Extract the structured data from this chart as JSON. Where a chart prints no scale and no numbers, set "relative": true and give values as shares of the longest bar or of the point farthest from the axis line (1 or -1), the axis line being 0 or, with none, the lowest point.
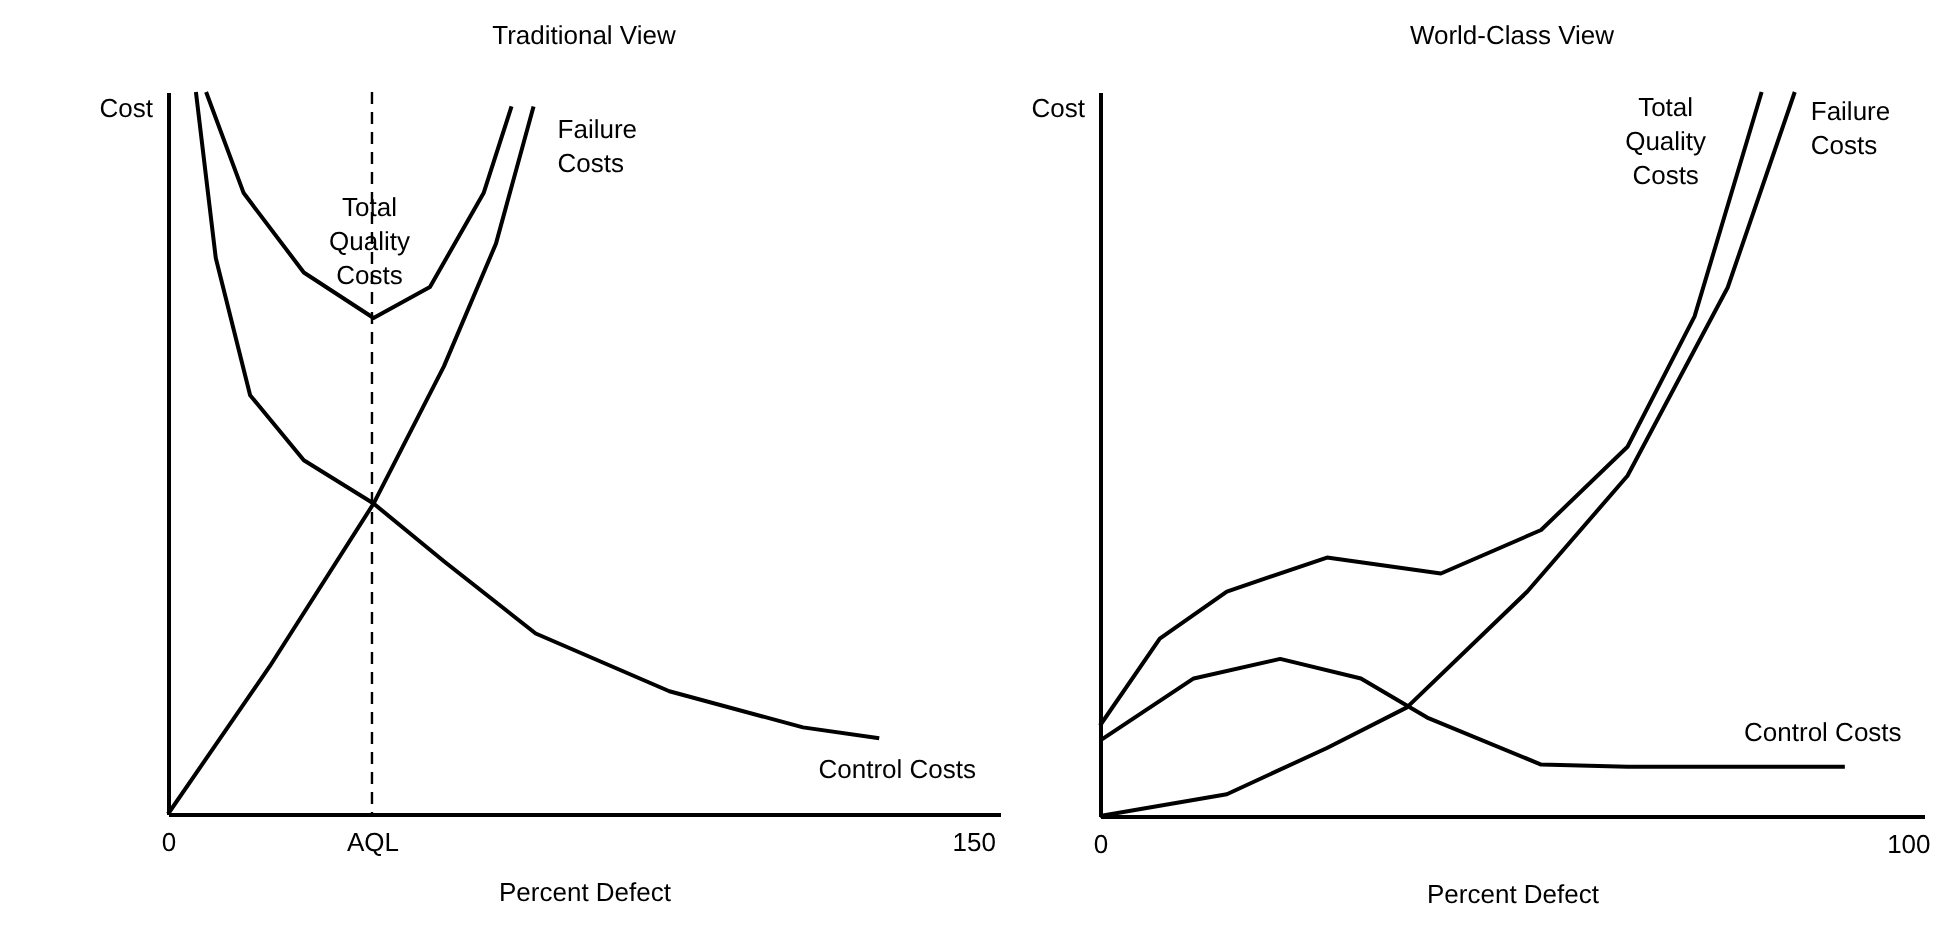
{
  "chart_data": [
    {
      "type": "line",
      "title": "Traditional View",
      "xlabel": "Percent Defect",
      "ylabel": "Cost",
      "relative": true,
      "xlim": [
        0,
        155
      ],
      "xticks": [
        0,
        {
          "value": 38,
          "label": "AQL"
        },
        150
      ],
      "ref_lines": [
        {
          "axis": "x",
          "value": 38,
          "label": null,
          "line_style": "dashed",
          "color": "#000000"
        }
      ],
      "series": [
        {
          "name": "Control Costs",
          "color": "#000000",
          "x": [
            5.2,
            8.9,
            15.3,
            25.3,
            38.3,
            51.4,
            68.5,
            93.4,
            118.3,
            132.5
          ],
          "values": [
            1,
            0.77,
            0.58,
            0.49,
            0.43,
            0.35,
            0.25,
            0.17,
            0.12,
            0.105
          ]
        },
        {
          "name": "Failure Costs",
          "color": "#000000",
          "x": [
            0,
            19,
            38.3,
            51.4,
            61.1,
            68.1
          ],
          "values": [
            0,
            0.205,
            0.43,
            0.62,
            0.79,
            0.98
          ]
        },
        {
          "name": "Total Quality Costs",
          "color": "#000000",
          "x": [
            7.1,
            14.1,
            25.3,
            38.3,
            48.8,
            58.8,
            64
          ],
          "values": [
            1,
            0.86,
            0.75,
            0.687,
            0.73,
            0.86,
            0.98
          ]
        }
      ]
    },
    {
      "type": "line",
      "title": "World-Class View",
      "xlabel": "Percent Defect",
      "ylabel": "Cost",
      "relative": true,
      "xlim": [
        0,
        102
      ],
      "xticks": [
        0,
        100
      ],
      "series": [
        {
          "name": "Control Costs",
          "color": "#000000",
          "x": [
            0,
            11.6,
            22.3,
            32.3,
            40.5,
            54.6,
            65.3,
            92.2
          ],
          "values": [
            0.104,
            0.19,
            0.217,
            0.19,
            0.136,
            0.071,
            0.068,
            0.068
          ]
        },
        {
          "name": "Failure Costs",
          "color": "#000000",
          "x": [
            0,
            15.7,
            28.1,
            38,
            52.9,
            65.3,
            77.7,
            86
          ],
          "values": [
            0,
            0.03,
            0.094,
            0.15,
            0.31,
            0.47,
            0.73,
            1
          ]
        },
        {
          "name": "Total Quality Costs",
          "color": "#000000",
          "x": [
            0,
            7.4,
            15.7,
            28.1,
            42.2,
            54.6,
            65.3,
            73.6,
            81.9
          ],
          "values": [
            0.125,
            0.245,
            0.31,
            0.357,
            0.335,
            0.395,
            0.51,
            0.69,
            1
          ]
        }
      ]
    }
  ]
}
